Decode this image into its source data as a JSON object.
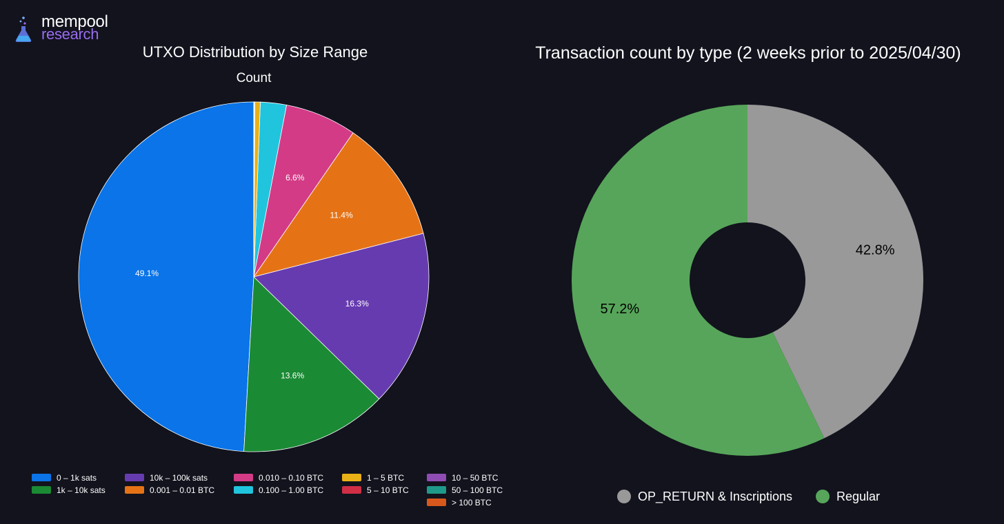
{
  "brand": {
    "line1": "mempool",
    "line2": "research"
  },
  "chart_data": [
    {
      "type": "pie",
      "title": "UTXO Distribution by Size Range",
      "subtitle": "Count",
      "labels_format": "percent",
      "slices": [
        {
          "label": "0 – 1k sats",
          "value": 49.1,
          "pct_label": "49.1%",
          "color": "#0a74e8"
        },
        {
          "label": "1k – 10k sats",
          "value": 13.6,
          "pct_label": "13.6%",
          "color": "#1b8a35"
        },
        {
          "label": "10k – 100k sats",
          "value": 16.3,
          "pct_label": "16.3%",
          "color": "#673bb0"
        },
        {
          "label": "0.001 – 0.01 BTC",
          "value": 11.4,
          "pct_label": "11.4%",
          "color": "#e57316"
        },
        {
          "label": "0.010 – 0.10 BTC",
          "value": 6.6,
          "pct_label": "6.6%",
          "color": "#d33b87"
        },
        {
          "label": "0.100 – 1.00 BTC",
          "value": 2.4,
          "pct_label": "",
          "color": "#20c4dd"
        },
        {
          "label": "1 – 5 BTC",
          "value": 0.5,
          "pct_label": "",
          "color": "#e9b116"
        },
        {
          "label": "5 – 10 BTC",
          "value": 0.05,
          "pct_label": "",
          "color": "#d02f45"
        },
        {
          "label": "10 – 50 BTC",
          "value": 0.03,
          "pct_label": "",
          "color": "#8f4db3"
        },
        {
          "label": "50 – 100 BTC",
          "value": 0.01,
          "pct_label": "",
          "color": "#1f9a8a"
        },
        {
          "label": "> 100 BTC",
          "value": 0.01,
          "pct_label": "",
          "color": "#d7581c"
        }
      ],
      "legend_placement": "bottom"
    },
    {
      "type": "donut",
      "title": "Transaction count by type (2 weeks prior to 2025/04/30)",
      "slices": [
        {
          "label": "OP_RETURN & Inscriptions",
          "value": 42.8,
          "pct_label": "42.8%",
          "color": "#999999"
        },
        {
          "label": "Regular",
          "value": 57.2,
          "pct_label": "57.2%",
          "color": "#57a55a"
        }
      ],
      "legend_placement": "bottom"
    }
  ]
}
